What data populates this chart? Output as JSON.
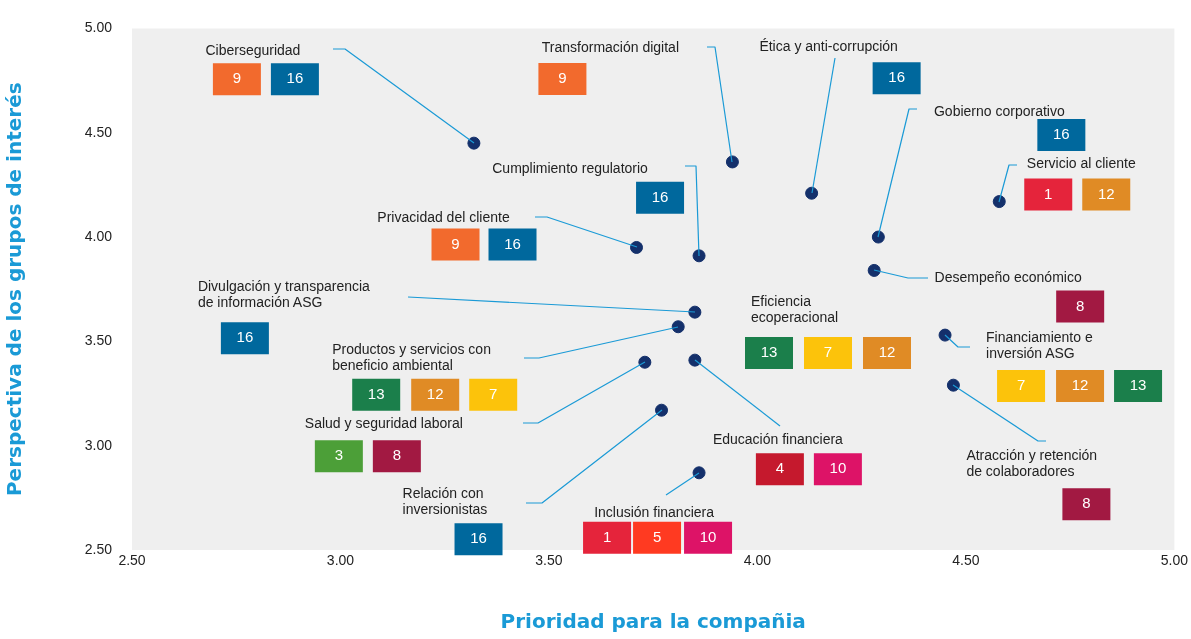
{
  "chart_data": {
    "type": "scatter",
    "xlabel": "Prioridad para la compañia",
    "ylabel": "Perspectiva de los grupos de interés",
    "x": [
      3.32,
      3.94,
      4.13,
      4.29,
      4.58,
      3.86,
      3.71,
      4.28,
      3.85,
      3.81,
      4.45,
      3.73,
      3.85,
      4.47,
      3.77,
      3.86
    ],
    "series": [
      {
        "color": "#14306b",
        "values": [
          4.45,
          4.36,
          4.21,
          4.0,
          4.17,
          3.91,
          3.95,
          3.84,
          3.64,
          3.57,
          3.53,
          3.4,
          3.41,
          3.29,
          3.17,
          2.87
        ]
      }
    ],
    "value_labels": [
      "Ciberseguridad",
      "Transformación digital",
      "Ética y anti-corrupción",
      "Gobierno corporativo",
      "Servicio al cliente",
      "Cumplimiento regulatorio",
      "Privacidad del cliente",
      "Desempeño económico",
      "Divulgación y transparencia de información ASG",
      "Productos y servicios con beneficio ambiental",
      "Financiamiento e inversión ASG",
      "Salud y seguridad laboral",
      "Educación financiera",
      "Atracción y retención de colaboradores",
      "Relación con inversionistas",
      "Inclusión financiera"
    ],
    "annotations": [
      "9",
      "16",
      "9",
      "16",
      "16",
      "1",
      "12",
      "16",
      "9",
      "16",
      "8",
      "16",
      "13",
      "12",
      "7",
      "7",
      "12",
      "13",
      "3",
      "8",
      "4",
      "10",
      "8",
      "16",
      "1",
      "5",
      "10",
      "Eficiencia ecoperacional",
      "13",
      "7",
      "12"
    ],
    "xlim": [
      2.5,
      5
    ],
    "ylim": [
      2.5,
      5
    ],
    "xticks": [
      {
        "value": 2.5,
        "label": "2.50"
      },
      {
        "value": 3,
        "label": "3.00"
      },
      {
        "value": 3.5,
        "label": "3.50"
      },
      {
        "value": 4,
        "label": "4.00"
      },
      {
        "value": 4.5,
        "label": "4.50"
      },
      {
        "value": 5,
        "label": "5.00"
      }
    ],
    "yticks": [
      {
        "value": 2.5,
        "label": "2.50"
      },
      {
        "value": 3,
        "label": "3.00"
      },
      {
        "value": 3.5,
        "label": "3.50"
      },
      {
        "value": 4,
        "label": "4.00"
      },
      {
        "value": 4.5,
        "label": "4.50"
      },
      {
        "value": 5,
        "label": "5.00"
      }
    ],
    "marker": "circle"
  }
}
